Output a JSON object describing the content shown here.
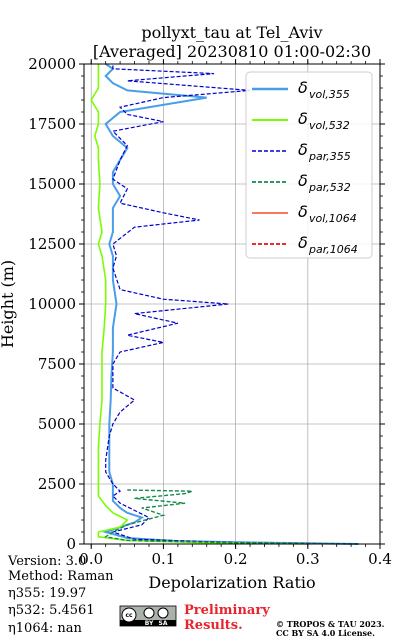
{
  "chart_data": {
    "type": "line",
    "title": "pollyxt_tau at Tel_Aviv",
    "subtitle": "[Averaged] 20230810 01:00-02:30",
    "xlabel": "Depolarization Ratio",
    "ylabel": "Height (m)",
    "xlim": [
      -0.01,
      0.4
    ],
    "ylim": [
      0,
      20000
    ],
    "xticks": [
      "0.0",
      "0.1",
      "0.2",
      "0.3",
      "0.4"
    ],
    "yticks": [
      "0",
      "2500",
      "5000",
      "7500",
      "10000",
      "12500",
      "15000",
      "17500",
      "20000"
    ],
    "xtick_values": [
      0.0,
      0.1,
      0.2,
      0.3,
      0.4
    ],
    "ytick_values": [
      0,
      2500,
      5000,
      7500,
      10000,
      12500,
      15000,
      17500,
      20000
    ],
    "grid": true,
    "legend_position": "top-right",
    "series": [
      {
        "name": "δ_vol,355",
        "label_main": "δ",
        "label_sub": "vol,355",
        "color": "#4a9de8",
        "style": "solid",
        "width": 2,
        "points": [
          [
            0.37,
            0
          ],
          [
            0.25,
            50
          ],
          [
            0.12,
            120
          ],
          [
            0.05,
            250
          ],
          [
            0.02,
            500
          ],
          [
            0.04,
            700
          ],
          [
            0.06,
            900
          ],
          [
            0.07,
            1100
          ],
          [
            0.05,
            1300
          ],
          [
            0.04,
            1500
          ],
          [
            0.03,
            1800
          ],
          [
            0.03,
            2100
          ],
          [
            0.03,
            2500
          ],
          [
            0.025,
            3000
          ],
          [
            0.025,
            4000
          ],
          [
            0.025,
            5000
          ],
          [
            0.027,
            6000
          ],
          [
            0.028,
            7000
          ],
          [
            0.03,
            8000
          ],
          [
            0.03,
            9000
          ],
          [
            0.035,
            10000
          ],
          [
            0.03,
            11000
          ],
          [
            0.03,
            12000
          ],
          [
            0.025,
            12500
          ],
          [
            0.03,
            13000
          ],
          [
            0.03,
            14000
          ],
          [
            0.04,
            14500
          ],
          [
            0.03,
            15000
          ],
          [
            0.03,
            15500
          ],
          [
            0.04,
            16000
          ],
          [
            0.05,
            16500
          ],
          [
            0.03,
            17000
          ],
          [
            0.02,
            17500
          ],
          [
            0.04,
            18000
          ],
          [
            0.16,
            18600
          ],
          [
            0.05,
            18900
          ],
          [
            0.03,
            19200
          ],
          [
            0.02,
            19500
          ],
          [
            0.03,
            19800
          ],
          [
            0.02,
            20000
          ]
        ]
      },
      {
        "name": "δ_vol,532",
        "label_main": "δ",
        "label_sub": "vol,532",
        "color": "#7cfc00",
        "style": "solid",
        "width": 1.6,
        "points": [
          [
            0.3,
            0
          ],
          [
            0.15,
            60
          ],
          [
            0.05,
            150
          ],
          [
            0.01,
            300
          ],
          [
            0.01,
            500
          ],
          [
            0.04,
            700
          ],
          [
            0.05,
            1000
          ],
          [
            0.03,
            1300
          ],
          [
            0.02,
            1600
          ],
          [
            0.01,
            2000
          ],
          [
            0.01,
            2500
          ],
          [
            0.01,
            3000
          ],
          [
            0.01,
            4000
          ],
          [
            0.012,
            5000
          ],
          [
            0.015,
            6000
          ],
          [
            0.015,
            7000
          ],
          [
            0.015,
            8000
          ],
          [
            0.018,
            9000
          ],
          [
            0.02,
            10000
          ],
          [
            0.02,
            11000
          ],
          [
            0.015,
            12000
          ],
          [
            0.01,
            12500
          ],
          [
            0.015,
            13000
          ],
          [
            0.01,
            14000
          ],
          [
            0.012,
            15000
          ],
          [
            0.01,
            16000
          ],
          [
            0.01,
            16500
          ],
          [
            0.005,
            17000
          ],
          [
            0.01,
            17500
          ],
          [
            0.01,
            18000
          ],
          [
            0.0,
            18500
          ],
          [
            0.01,
            19000
          ],
          [
            0.01,
            19500
          ],
          [
            0.01,
            20000
          ]
        ]
      },
      {
        "name": "δ_par,355",
        "label_main": "δ",
        "label_sub": "par,355",
        "color": "#0000cd",
        "style": "dashed",
        "width": 1.2,
        "points": [
          [
            0.37,
            0
          ],
          [
            0.2,
            60
          ],
          [
            0.06,
            200
          ],
          [
            0.03,
            500
          ],
          [
            0.07,
            800
          ],
          [
            0.08,
            1100
          ],
          [
            0.06,
            1400
          ],
          [
            0.04,
            1700
          ],
          [
            0.03,
            2000
          ],
          [
            0.04,
            2200
          ],
          [
            0.03,
            2500
          ],
          [
            0.02,
            3000
          ],
          [
            0.02,
            3500
          ],
          [
            0.025,
            4500
          ],
          [
            0.03,
            5000
          ],
          [
            0.04,
            5500
          ],
          [
            0.06,
            6000
          ],
          [
            0.03,
            6500
          ],
          [
            0.03,
            7500
          ],
          [
            0.04,
            8000
          ],
          [
            0.1,
            8400
          ],
          [
            0.05,
            8700
          ],
          [
            0.12,
            9200
          ],
          [
            0.06,
            9600
          ],
          [
            0.19,
            10000
          ],
          [
            0.1,
            10200
          ],
          [
            0.04,
            10600
          ],
          [
            0.03,
            11500
          ],
          [
            0.035,
            12000
          ],
          [
            0.03,
            12500
          ],
          [
            0.06,
            13200
          ],
          [
            0.15,
            13500
          ],
          [
            0.1,
            13800
          ],
          [
            0.04,
            14200
          ],
          [
            0.05,
            14800
          ],
          [
            0.03,
            15200
          ],
          [
            0.04,
            16000
          ],
          [
            0.05,
            16600
          ],
          [
            0.03,
            17200
          ],
          [
            0.1,
            17600
          ],
          [
            0.05,
            17900
          ],
          [
            0.04,
            18200
          ],
          [
            0.1,
            18600
          ],
          [
            0.22,
            18900
          ],
          [
            0.05,
            19300
          ],
          [
            0.17,
            19600
          ],
          [
            0.03,
            19800
          ],
          [
            0.03,
            20000
          ]
        ]
      },
      {
        "name": "δ_par,532",
        "label_main": "δ",
        "label_sub": "par,532",
        "color": "#138a4a",
        "style": "dashed",
        "width": 1.4,
        "points": [
          [
            0.37,
            0
          ],
          [
            0.2,
            50
          ],
          [
            0.05,
            150
          ],
          [
            0.02,
            300
          ],
          [
            0.03,
            500
          ],
          [
            0.05,
            800
          ],
          [
            0.1,
            1200
          ],
          [
            0.07,
            1500
          ],
          [
            0.13,
            1700
          ],
          [
            0.06,
            1900
          ],
          [
            0.13,
            2100
          ],
          [
            0.14,
            2200
          ],
          [
            0.05,
            2250
          ]
        ]
      },
      {
        "name": "δ_vol,1064",
        "label_main": "δ",
        "label_sub": "vol,1064",
        "color": "#f4664a",
        "style": "solid",
        "width": 1.4,
        "points": []
      },
      {
        "name": "δ_par,1064",
        "label_main": "δ",
        "label_sub": "par,1064",
        "color": "#d7191c",
        "style": "dashed",
        "width": 1.4,
        "points": []
      }
    ]
  },
  "info": {
    "version": "Version: 3.0",
    "method": "Method: Raman",
    "eta355": "η355:  19.97",
    "eta532": "η532: 5.4561",
    "eta1064": "η1064:    nan"
  },
  "badge": {
    "prelim1": "Preliminary",
    "prelim2": "Results.",
    "cc": "cc",
    "cc_by": "BY",
    "cc_sa": "SA"
  },
  "copyright": {
    "line1": "© TROPOS & TAU 2023.",
    "line2": "CC BY SA 4.0 License."
  }
}
